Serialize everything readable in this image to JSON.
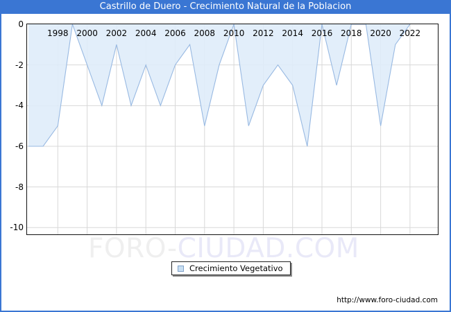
{
  "window": {
    "title": "Castrillo de Duero - Crecimiento Natural de la Poblacion"
  },
  "chart_data": {
    "type": "area",
    "title": "Castrillo de Duero - Crecimiento Natural de la Poblacion",
    "x": [
      1996,
      1997,
      1998,
      1999,
      2000,
      2001,
      2002,
      2003,
      2004,
      2005,
      2006,
      2007,
      2008,
      2009,
      2010,
      2011,
      2012,
      2013,
      2014,
      2015,
      2016,
      2017,
      2018,
      2019,
      2020,
      2021,
      2022
    ],
    "series": [
      {
        "name": "Crecimiento Vegetativo",
        "values": [
          -6,
          -6,
          -5,
          0,
          -2,
          -4,
          -1,
          -4,
          -2,
          -4,
          -2,
          -1,
          -5,
          -2,
          0,
          -5,
          -3,
          -2,
          -3,
          -6,
          0,
          -3,
          0,
          0,
          -5,
          -1,
          0
        ]
      }
    ],
    "xlabel": "",
    "ylabel": "",
    "ylim": [
      -10,
      0
    ],
    "xticks": [
      1998,
      2000,
      2002,
      2004,
      2006,
      2008,
      2010,
      2012,
      2014,
      2016,
      2018,
      2020,
      2022
    ],
    "yticks": [
      0,
      -2,
      -4,
      -6,
      -8,
      -10
    ],
    "grid": true,
    "legend_position": "bottom-center",
    "fill_color": "#dfecfa",
    "line_color": "#98b9e2",
    "grid_color": "#d8d8d8"
  },
  "legend": {
    "label": "Crecimiento Vegetativo"
  },
  "watermark": {
    "part1": "FORO-",
    "part2": "CIUDAD.COM"
  },
  "footer": {
    "url": "http://www.foro-ciudad.com"
  },
  "colors": {
    "titlebar": "#3a76d3",
    "border": "#3a76d3",
    "plot_border": "#111111"
  }
}
